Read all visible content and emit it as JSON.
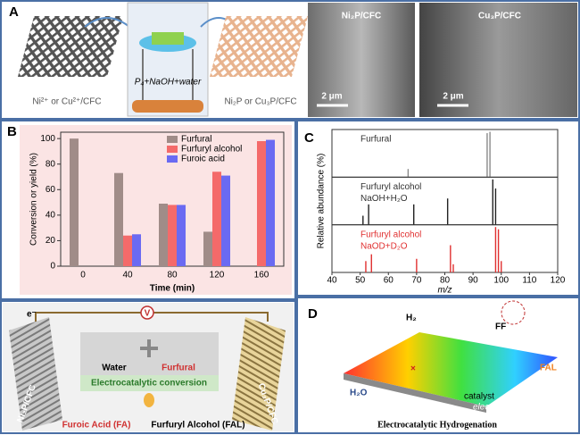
{
  "panel_a": {
    "label": "A",
    "precursor": "Ni²⁺ or Cu²⁺/CFC",
    "reaction": "P₄+NaOH+water",
    "product": "Ni₂P or Cu₃P/CFC",
    "sem_left": "Ni₂P/CFC",
    "sem_right": "Cu₃P/CFC",
    "scale_left": "2 μm",
    "scale_right": "2 μm"
  },
  "panel_b_label": "B",
  "panel_c_label": "C",
  "scheme": {
    "electron": "e⁻",
    "voltmeter": "V",
    "water": "Water",
    "furfural": "Furfural",
    "process": "Electrocatalytic conversion",
    "anode": "Ni₂P/CFC",
    "cathode": "Cu₃P/CFC",
    "anode_product": "Furoic Acid (FA)",
    "cathode_product": "Furfuryl Alcohol (FAL)"
  },
  "panel_d": {
    "label": "D",
    "h2": "H₂",
    "ff": "FF",
    "fal": "FAL",
    "h2o": "H₂O",
    "catalyst": "catalyst",
    "electrode": "electrode",
    "caption": "Electrocatalytic Hydrogenation"
  },
  "chart_data": [
    {
      "type": "bar",
      "x_label": "Time (min)",
      "y_label": "Conversion or yield (%)",
      "categories": [
        "0",
        "40",
        "80",
        "120",
        "160"
      ],
      "series": [
        {
          "name": "Furfural",
          "color": "#a08c88",
          "values": [
            100,
            73,
            49,
            27,
            0
          ]
        },
        {
          "name": "Furfuryl alcohol",
          "color": "#f46a6a",
          "values": [
            0,
            24,
            48,
            74,
            98
          ]
        },
        {
          "name": "Furoic acid",
          "color": "#6a6af2",
          "values": [
            0,
            25,
            48,
            71,
            99
          ]
        }
      ],
      "ylim": [
        0,
        105
      ],
      "yticks": [
        0,
        20,
        40,
        60,
        80,
        100
      ],
      "legend": "upper center"
    },
    {
      "type": "stem",
      "x_label": "m/z",
      "y_label": "Relative abundance (%)",
      "xlim": [
        40,
        120
      ],
      "xticks": [
        40,
        50,
        60,
        70,
        80,
        90,
        100,
        110,
        120
      ],
      "ylim": [
        0,
        105
      ],
      "series": [
        {
          "name": "Furfural",
          "color": "#8a8a8a",
          "x": [
            67,
            95,
            96
          ],
          "values": [
            18,
            97,
            100
          ]
        },
        {
          "name": "Furfuryl alcohol",
          "condition": "NaOH+H₂O",
          "color": "#222222",
          "x": [
            51,
            53,
            69,
            81,
            97,
            98
          ],
          "values": [
            20,
            45,
            45,
            58,
            100,
            80
          ]
        },
        {
          "name": "Furfuryl alcohol",
          "condition": "NaOD+D₂O",
          "color": "#e03030",
          "x": [
            52,
            54,
            70,
            82,
            83,
            98,
            99,
            100
          ],
          "values": [
            25,
            40,
            30,
            60,
            18,
            100,
            95,
            25
          ]
        }
      ]
    }
  ]
}
